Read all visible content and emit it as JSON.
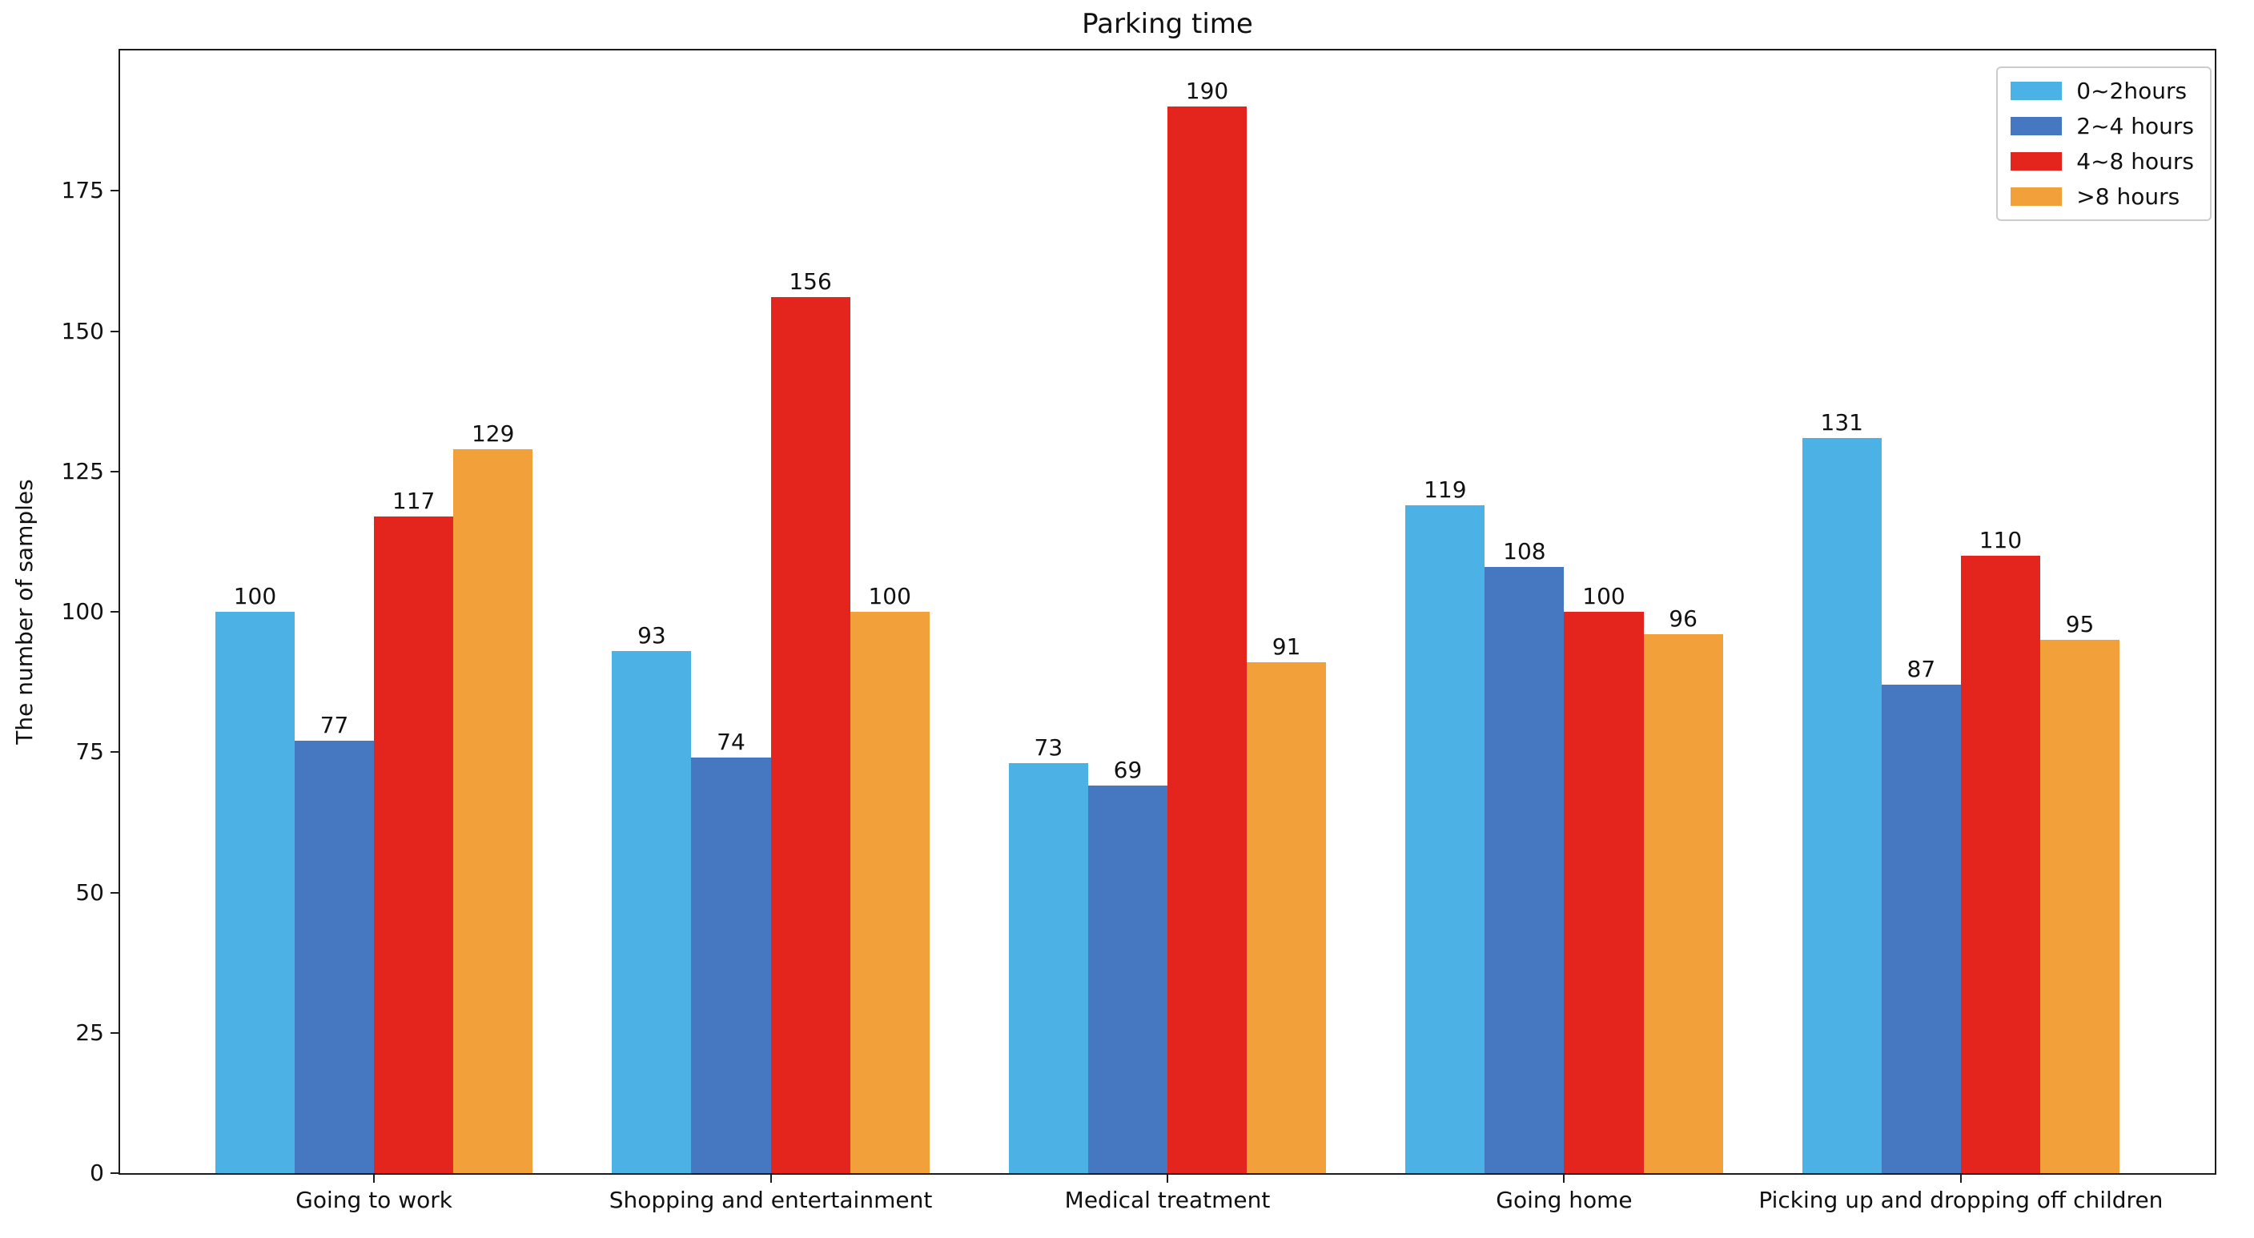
{
  "chart_data": {
    "type": "bar",
    "title": "Parking time",
    "xlabel": "",
    "ylabel": "The number of samples",
    "categories": [
      "Going to work",
      "Shopping and entertainment",
      "Medical treatment",
      "Going home",
      "Picking up and dropping off children"
    ],
    "series": [
      {
        "name": "0~2hours",
        "color": "#4cb2e6",
        "values": [
          100,
          93,
          73,
          119,
          131
        ]
      },
      {
        "name": "2~4 hours",
        "color": "#4678c1",
        "values": [
          77,
          74,
          69,
          108,
          87
        ]
      },
      {
        "name": "4~8 hours",
        "color": "#e4251e",
        "values": [
          117,
          156,
          190,
          100,
          110
        ]
      },
      {
        "name": ">8 hours",
        "color": "#f1a03a",
        "values": [
          129,
          100,
          91,
          96,
          95
        ]
      }
    ],
    "ylim": [
      0,
      200
    ],
    "yticks": [
      0,
      25,
      50,
      75,
      100,
      125,
      150,
      175
    ],
    "legend_position": "upper right",
    "grid": false,
    "bar_value_labels": true
  }
}
